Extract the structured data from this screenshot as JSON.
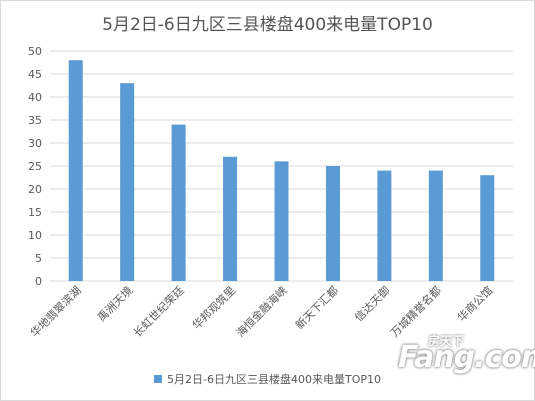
{
  "chart_data": {
    "type": "bar",
    "title": "5月2日-6日九区三县楼盘400来电量TOP10",
    "categories": [
      "华地翡翠滨湖",
      "禹洲天境",
      "长虹世纪荣廷",
      "华邦观筑里",
      "海恒金融海峡",
      "新天下汇都",
      "信达天御",
      "万城精誉名都",
      "华商公馆"
    ],
    "series": [
      {
        "name": "5月2日-6日九区三县楼盘400来电量TOP10",
        "values": [
          48,
          43,
          34,
          27,
          26,
          25,
          24,
          24,
          23
        ]
      }
    ],
    "ylim": [
      0,
      50
    ],
    "yticks": [
      0,
      5,
      10,
      15,
      20,
      25,
      30,
      35,
      40,
      45,
      50
    ],
    "grid": true,
    "legend": "bottom",
    "colors": {
      "bar": "#5b9bd5",
      "grid": "#d9d9d9",
      "text": "#595959"
    }
  },
  "watermark": {
    "top": "房天下",
    "main": "Fang.com"
  }
}
